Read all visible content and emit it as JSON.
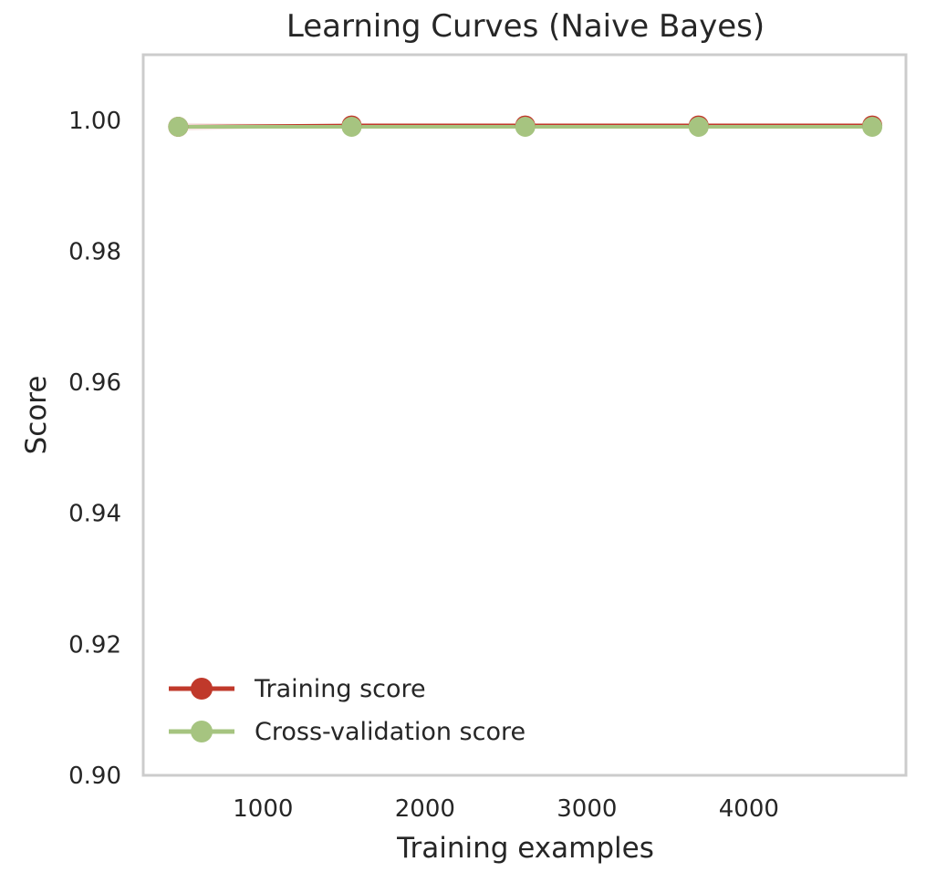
{
  "chart_data": {
    "type": "line",
    "title": "Learning Curves (Naive Bayes)",
    "xlabel": "Training examples",
    "ylabel": "Score",
    "xlim": [
      260,
      4970
    ],
    "ylim": [
      0.9,
      1.01
    ],
    "xticks": [
      1000,
      2000,
      3000,
      4000
    ],
    "xtick_labels": [
      "1000",
      "2000",
      "3000",
      "4000"
    ],
    "yticks": [
      0.9,
      0.92,
      0.94,
      0.96,
      0.98,
      1.0
    ],
    "ytick_labels": [
      "0.90",
      "0.92",
      "0.94",
      "0.96",
      "0.98",
      "1.00"
    ],
    "grid": false,
    "legend": "lower-left",
    "series": [
      {
        "name": "Training score",
        "color": "#c0392b",
        "x": [
          476,
          1547,
          2619,
          3690,
          4762
        ],
        "y": [
          0.999,
          0.9992,
          0.9992,
          0.9992,
          0.9992
        ],
        "band_low": [
          0.9984,
          0.9991,
          0.9991,
          0.9991,
          0.9991
        ],
        "band_high": [
          0.9996,
          0.9993,
          0.9993,
          0.9993,
          0.9993
        ]
      },
      {
        "name": "Cross-validation score",
        "color": "#a6c480",
        "x": [
          476,
          1547,
          2619,
          3690,
          4762
        ],
        "y": [
          0.999,
          0.999,
          0.999,
          0.999,
          0.999
        ],
        "band_low": [
          0.9988,
          0.9988,
          0.9988,
          0.9988,
          0.9988
        ],
        "band_high": [
          0.9992,
          0.9992,
          0.9992,
          0.9992,
          0.9992
        ]
      }
    ]
  }
}
